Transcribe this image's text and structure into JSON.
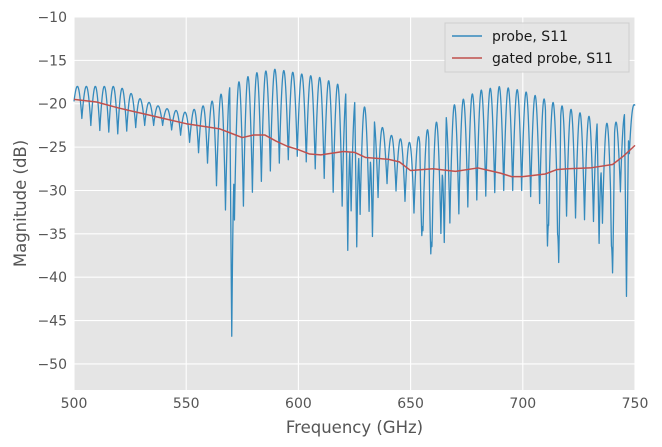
{
  "chart_data": {
    "type": "line",
    "title": "",
    "xlabel": "Frequency (GHz)",
    "ylabel": "Magnitude (dB)",
    "xlim": [
      500,
      750
    ],
    "ylim": [
      -53,
      -10
    ],
    "xticks": [
      500,
      550,
      600,
      650,
      700,
      750
    ],
    "yticks": [
      -50,
      -45,
      -40,
      -35,
      -30,
      -25,
      -20,
      -15,
      -10
    ],
    "xtick_labels": [
      "500",
      "550",
      "600",
      "650",
      "700",
      "750"
    ],
    "ytick_labels": [
      "−50",
      "−45",
      "−40",
      "−35",
      "−30",
      "−25",
      "−20",
      "−15",
      "−10"
    ],
    "grid": true,
    "legend_position": "top-right",
    "background": "#e5e5e5",
    "series": [
      {
        "name": "probe, S11",
        "color": "#348abd",
        "style": "oscillating",
        "x": [
          500.0,
          510.0,
          520.0,
          530.0,
          540.0,
          550.0,
          560.0,
          570.0,
          580.0,
          590.0,
          600.0,
          610.0,
          620.0,
          630.0,
          640.0,
          650.0,
          660.0,
          670.0,
          680.0,
          690.0,
          700.0,
          710.0,
          720.0,
          730.0,
          740.0,
          750.0
        ],
        "upper": [
          -18.0,
          -18.0,
          -18.0,
          -19.5,
          -20.5,
          -21.0,
          -20.0,
          -18.0,
          -16.5,
          -16.0,
          -16.5,
          -17.0,
          -18.0,
          -20.5,
          -23.5,
          -24.5,
          -22.5,
          -20.0,
          -18.5,
          -18.0,
          -18.5,
          -19.5,
          -20.5,
          -21.5,
          -22.5,
          -20.0
        ],
        "lower": [
          -21.0,
          -23.0,
          -23.5,
          -22.5,
          -22.5,
          -24.0,
          -27.0,
          -34.0,
          -30.0,
          -27.0,
          -26.0,
          -28.0,
          -32.0,
          -33.0,
          -29.0,
          -32.0,
          -36.0,
          -33.0,
          -31.0,
          -30.0,
          -30.0,
          -32.0,
          -33.0,
          -33.5,
          -34.0,
          -23.0
        ],
        "spikes": [
          [
            570.3,
            -46.8
          ],
          [
            622.0,
            -36.9
          ],
          [
            626.0,
            -36.5
          ],
          [
            633.0,
            -35.3
          ],
          [
            655.0,
            -35.2
          ],
          [
            659.0,
            -37.3
          ],
          [
            665.0,
            -36.0
          ],
          [
            711.0,
            -36.4
          ],
          [
            716.0,
            -38.3
          ],
          [
            734.0,
            -36.1
          ],
          [
            740.0,
            -39.5
          ],
          [
            746.2,
            -42.2
          ]
        ],
        "period": 4.0
      },
      {
        "name": "gated probe, S11",
        "color": "#c0504d",
        "x": [
          500,
          510,
          520,
          530,
          540,
          550,
          560,
          565,
          570,
          575,
          580,
          585,
          590,
          595,
          600,
          605,
          610,
          620,
          625,
          630,
          640,
          645,
          650,
          660,
          670,
          680,
          685,
          690,
          695,
          700,
          710,
          715,
          720,
          730,
          740,
          745,
          750
        ],
        "values": [
          -19.5,
          -19.8,
          -20.5,
          -21.1,
          -21.7,
          -22.3,
          -22.7,
          -22.9,
          -23.4,
          -23.9,
          -23.6,
          -23.6,
          -24.3,
          -24.9,
          -25.3,
          -25.8,
          -25.9,
          -25.5,
          -25.6,
          -26.2,
          -26.4,
          -26.7,
          -27.7,
          -27.5,
          -27.8,
          -27.4,
          -27.7,
          -28.0,
          -28.4,
          -28.4,
          -28.1,
          -27.6,
          -27.5,
          -27.4,
          -27.0,
          -26.0,
          -24.8
        ]
      }
    ]
  }
}
